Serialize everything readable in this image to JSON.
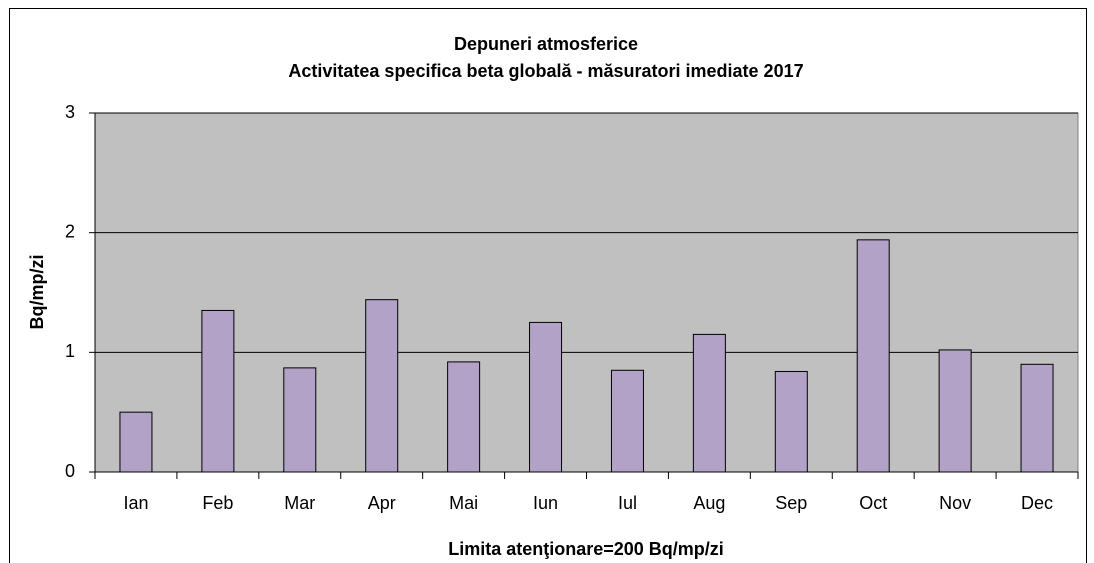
{
  "chart_data": {
    "type": "bar",
    "title": "Depuneri atmosferice",
    "subtitle": "Activitatea specifica beta globală - măsuratori imediate 2017",
    "y_label": "Bq/mp/zi",
    "x_label": "Limita atenţionare=200 Bq/mp/zi",
    "categories": [
      "Ian",
      "Feb",
      "Mar",
      "Apr",
      "Mai",
      "Iun",
      "Iul",
      "Aug",
      "Sep",
      "Oct",
      "Nov",
      "Dec"
    ],
    "values": [
      0.5,
      1.35,
      0.87,
      1.44,
      0.92,
      1.25,
      0.85,
      1.15,
      0.84,
      1.94,
      1.02,
      0.9
    ],
    "color": "#b3a2c7",
    "ylim": [
      0,
      3
    ],
    "yticks": [
      0,
      1,
      2,
      3
    ],
    "grid": true
  }
}
